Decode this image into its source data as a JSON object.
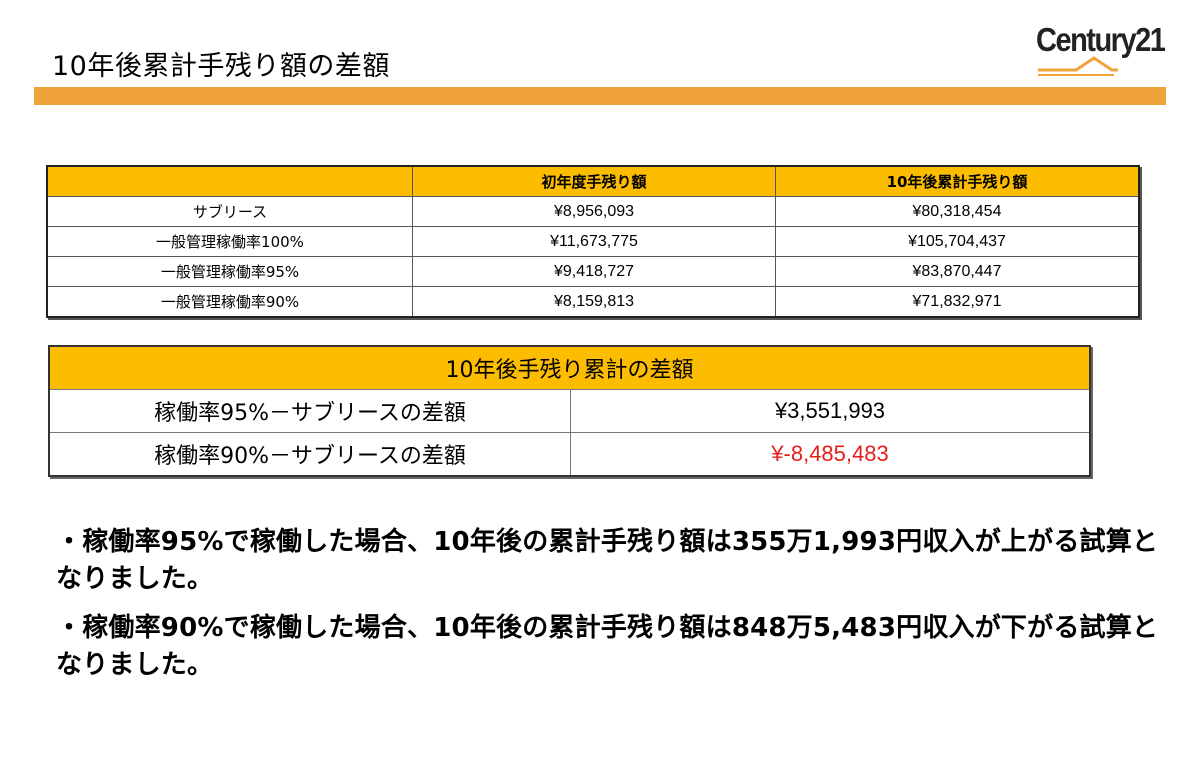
{
  "header": {
    "title": "10年後累計手残り額の差額",
    "logo_text": "Century21",
    "brand_color": "#f0a33a"
  },
  "table1": {
    "headers": [
      "",
      "初年度手残り額",
      "10年後累計手残り額"
    ],
    "rows": [
      {
        "label": "サブリース",
        "first_year": "¥8,956,093",
        "ten_year": "¥80,318,454"
      },
      {
        "label": "一般管理稼働率100%",
        "first_year": "¥11,673,775",
        "ten_year": "¥105,704,437"
      },
      {
        "label": "一般管理稼働率95%",
        "first_year": "¥9,418,727",
        "ten_year": "¥83,870,447"
      },
      {
        "label": "一般管理稼働率90%",
        "first_year": "¥8,159,813",
        "ten_year": "¥71,832,971"
      }
    ]
  },
  "table2": {
    "title": "10年後手残り累計の差額",
    "rows": [
      {
        "label": "稼働率95%－サブリースの差額",
        "value": "¥3,551,993"
      },
      {
        "label": "稼働率90%－サブリースの差額",
        "value": "¥-8,485,483"
      }
    ]
  },
  "notes": [
    "・稼働率95%で稼働した場合、10年後の累計手残り額は355万1,993円収入が上がる試算となりました。",
    "・稼働率90%で稼働した場合、10年後の累計手残り額は848万5,483円収入が下がる試算となりました。"
  ],
  "colors": {
    "header_fill": "#fcbd00",
    "negative": "#e4201b"
  }
}
